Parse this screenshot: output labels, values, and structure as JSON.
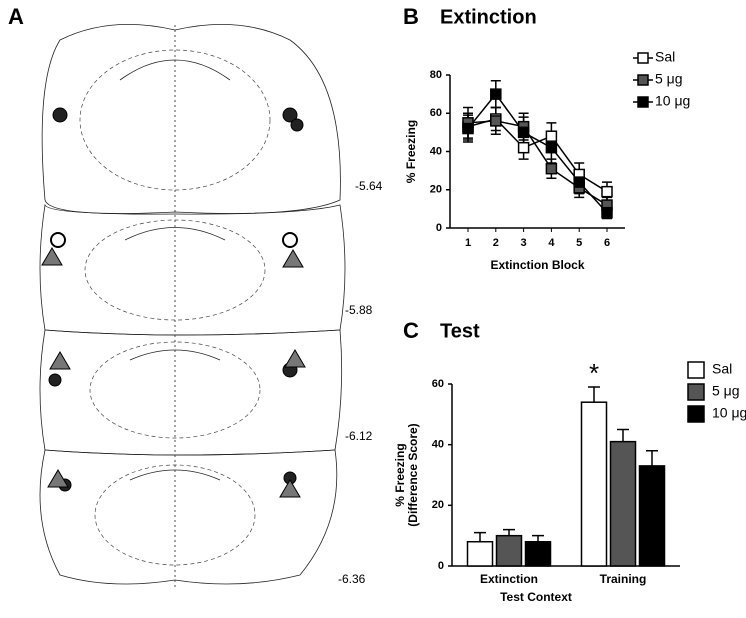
{
  "atlas": {
    "panel": "A",
    "sections": [
      "-5.64",
      "-5.88",
      "-6.12",
      "-6.36"
    ]
  },
  "chart_data": [
    {
      "type": "line",
      "panel": "B",
      "title": "Extinction",
      "categories": [
        "1",
        "2",
        "3",
        "4",
        "5",
        "6"
      ],
      "xlabel": "Extinction Block",
      "ylabel": [
        "% Freezing"
      ],
      "ylim": [
        0,
        80
      ],
      "yticks": [
        0,
        20,
        40,
        60,
        80
      ],
      "series": [
        {
          "name": "Sal",
          "color": "#ffffff",
          "values": [
            53,
            57,
            42,
            48,
            28,
            19
          ],
          "errors": [
            7,
            6,
            6,
            7,
            6,
            5
          ]
        },
        {
          "name": "5 μg",
          "color": "#555555",
          "values": [
            55,
            56,
            53,
            31,
            21,
            12
          ],
          "errors": [
            8,
            7,
            7,
            5,
            5,
            4
          ]
        },
        {
          "name": "10 μg",
          "color": "#000000",
          "values": [
            52,
            70,
            50,
            42,
            24,
            8
          ],
          "errors": [
            7,
            7,
            8,
            8,
            6,
            3
          ]
        }
      ]
    },
    {
      "type": "bar",
      "panel": "C",
      "title": "Test",
      "categories": [
        "Extinction",
        "Training"
      ],
      "xlabel": "Test Context",
      "ylabel": [
        "% Freezing",
        "(Difference Score)"
      ],
      "ylim": [
        0,
        60
      ],
      "yticks": [
        0,
        20,
        40,
        60
      ],
      "annotation": "*",
      "series": [
        {
          "name": "Sal",
          "color": "#ffffff",
          "values": [
            8,
            54
          ],
          "errors": [
            3,
            5
          ]
        },
        {
          "name": "5 μg",
          "color": "#555555",
          "values": [
            10,
            41
          ],
          "errors": [
            2,
            4
          ]
        },
        {
          "name": "10 μg",
          "color": "#000000",
          "values": [
            8,
            33
          ],
          "errors": [
            2,
            5
          ]
        }
      ]
    }
  ]
}
